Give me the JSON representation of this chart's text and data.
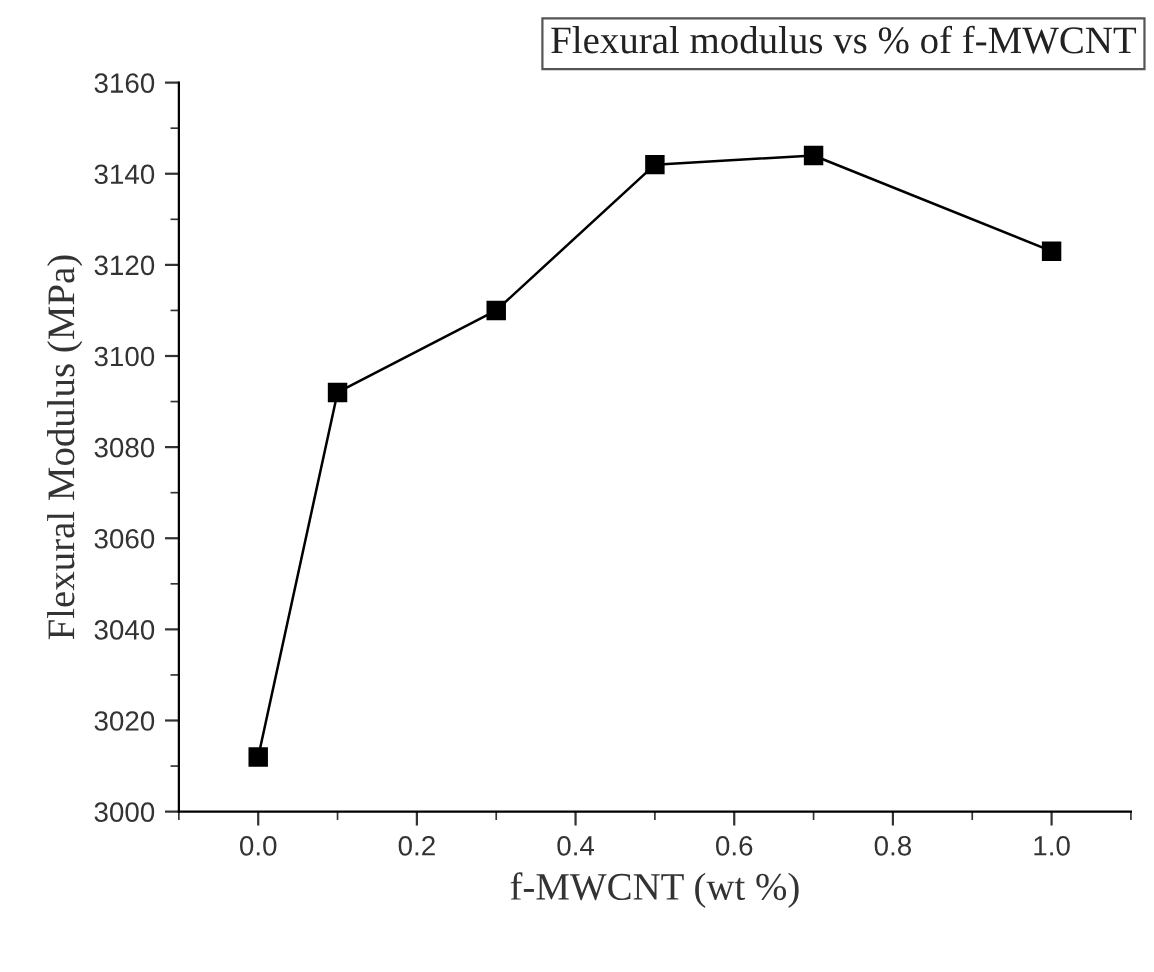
{
  "chart_data": {
    "type": "line",
    "title": "Flexural modulus vs % of f-MWCNT",
    "xlabel": "f-MWCNT (wt %)",
    "ylabel": "Flexural Modulus (MPa)",
    "x": [
      0.0,
      0.1,
      0.3,
      0.5,
      0.7,
      1.0
    ],
    "series": [
      {
        "color": "#000000",
        "values": [
          3012,
          3092,
          3110,
          3142,
          3144,
          3123
        ]
      }
    ],
    "xlim": [
      -0.1,
      1.1
    ],
    "ylim": [
      3000,
      3160
    ],
    "xticks": [
      {
        "value": 0.0,
        "label": "0.0"
      },
      {
        "value": 0.2,
        "label": "0.2"
      },
      {
        "value": 0.4,
        "label": "0.4"
      },
      {
        "value": 0.6,
        "label": "0.6"
      },
      {
        "value": 0.8,
        "label": "0.8"
      },
      {
        "value": 1.0,
        "label": "1.0"
      }
    ],
    "yticks": [
      3000,
      3020,
      3040,
      3060,
      3080,
      3100,
      3120,
      3140,
      3160
    ],
    "marker": "square",
    "line_style": "solid",
    "grid": false,
    "legend": false
  }
}
